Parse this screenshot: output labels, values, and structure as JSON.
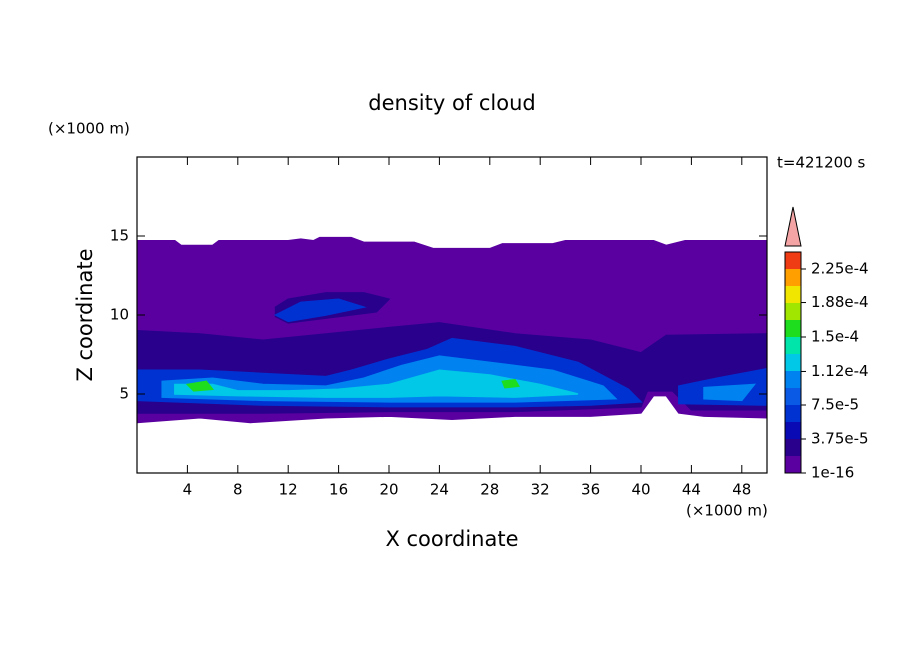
{
  "chart_data": {
    "type": "contour",
    "title": "density of cloud",
    "x_label": "X coordinate",
    "y_label": "Z coordinate",
    "x_unit": "(×1000 m)",
    "y_unit": "(×1000 m)",
    "time_label": "t=421200 s",
    "xlim": [
      0,
      50
    ],
    "ylim": [
      0,
      20
    ],
    "xticks": [
      4,
      8,
      12,
      16,
      20,
      24,
      28,
      32,
      36,
      40,
      44,
      48
    ],
    "yticks": [
      5,
      10,
      15
    ],
    "levels": [
      1e-16,
      1.875e-05,
      3.75e-05,
      5.625e-05,
      7.5e-05,
      9.375e-05,
      0.0001125,
      0.00013125,
      0.00015,
      0.00016875,
      0.0001875,
      0.00020625,
      0.000225
    ],
    "colors": [
      "#5a00a0",
      "#28008c",
      "#0a0ab4",
      "#0032d2",
      "#0a5ae6",
      "#0082f0",
      "#00c8e6",
      "#00e6aa",
      "#1edc1e",
      "#a0e600",
      "#f0e600",
      "#ffa000",
      "#f03c14"
    ],
    "colorbar_ticks": [
      {
        "value": 1e-16,
        "label": "1e-16"
      },
      {
        "value": 3.75e-05,
        "label": "3.75e-5"
      },
      {
        "value": 7.5e-05,
        "label": "7.5e-5"
      },
      {
        "value": 0.000112,
        "label": "1.12e-4"
      },
      {
        "value": 0.00015,
        "label": "1.5e-4"
      },
      {
        "value": 0.000188,
        "label": "1.88e-4"
      },
      {
        "value": 0.000225,
        "label": "2.25e-4"
      }
    ],
    "regions": [
      {
        "level": 1e-16,
        "points": [
          [
            0,
            14.7
          ],
          [
            3,
            14.7
          ],
          [
            3.5,
            14.4
          ],
          [
            6,
            14.4
          ],
          [
            6.5,
            14.7
          ],
          [
            12,
            14.7
          ],
          [
            13,
            14.8
          ],
          [
            14,
            14.7
          ],
          [
            14.5,
            14.9
          ],
          [
            17,
            14.9
          ],
          [
            18,
            14.6
          ],
          [
            22,
            14.6
          ],
          [
            23.5,
            14.2
          ],
          [
            28,
            14.2
          ],
          [
            29,
            14.5
          ],
          [
            33,
            14.5
          ],
          [
            34,
            14.7
          ],
          [
            41,
            14.7
          ],
          [
            42,
            14.4
          ],
          [
            43.5,
            14.7
          ],
          [
            50,
            14.7
          ],
          [
            50,
            3.5
          ],
          [
            45,
            3.6
          ],
          [
            43,
            3.8
          ],
          [
            42,
            4.9
          ],
          [
            41,
            4.9
          ],
          [
            40,
            3.8
          ],
          [
            36,
            3.6
          ],
          [
            30,
            3.6
          ],
          [
            25,
            3.4
          ],
          [
            20,
            3.6
          ],
          [
            15,
            3.5
          ],
          [
            9,
            3.2
          ],
          [
            5,
            3.5
          ],
          [
            0,
            3.2
          ]
        ]
      },
      {
        "level": 1.875e-05,
        "points": [
          [
            0,
            9
          ],
          [
            5,
            8.8
          ],
          [
            10,
            8.4
          ],
          [
            15,
            8.8
          ],
          [
            20,
            9.2
          ],
          [
            24,
            9.5
          ],
          [
            30,
            8.8
          ],
          [
            36,
            8.4
          ],
          [
            40,
            7.6
          ],
          [
            42,
            8.7
          ],
          [
            50,
            8.8
          ],
          [
            50,
            4
          ],
          [
            44,
            4
          ],
          [
            42.5,
            5.2
          ],
          [
            40.5,
            5.2
          ],
          [
            40,
            4.2
          ],
          [
            30,
            3.9
          ],
          [
            20,
            3.9
          ],
          [
            10,
            3.8
          ],
          [
            0,
            3.8
          ]
        ]
      },
      {
        "level": 1.875e-05,
        "points": [
          [
            11,
            10.5
          ],
          [
            12,
            11
          ],
          [
            15,
            11.4
          ],
          [
            18,
            11.4
          ],
          [
            20,
            11
          ],
          [
            19,
            10.2
          ],
          [
            15,
            9.8
          ],
          [
            12,
            9.5
          ],
          [
            11,
            9.9
          ]
        ]
      },
      {
        "level": 5.625e-05,
        "points": [
          [
            0,
            6.5
          ],
          [
            5,
            6.5
          ],
          [
            10,
            6.3
          ],
          [
            15,
            6.1
          ],
          [
            17,
            6.5
          ],
          [
            20,
            7.2
          ],
          [
            23,
            7.8
          ],
          [
            25,
            8.5
          ],
          [
            30,
            8
          ],
          [
            35,
            7
          ],
          [
            39,
            5.3
          ],
          [
            40,
            4.5
          ],
          [
            36,
            4.3
          ],
          [
            30,
            4.2
          ],
          [
            20,
            4.2
          ],
          [
            10,
            4.3
          ],
          [
            0,
            4.6
          ]
        ]
      },
      {
        "level": 5.625e-05,
        "points": [
          [
            43,
            5.5
          ],
          [
            46,
            6
          ],
          [
            50,
            6.6
          ],
          [
            50,
            4.3
          ],
          [
            43,
            4.4
          ]
        ]
      },
      {
        "level": 5.625e-05,
        "points": [
          [
            11,
            10
          ],
          [
            13,
            10.8
          ],
          [
            16,
            11
          ],
          [
            18,
            10.5
          ],
          [
            15,
            10
          ],
          [
            12,
            9.6
          ]
        ]
      },
      {
        "level": 9.375e-05,
        "points": [
          [
            2,
            5.8
          ],
          [
            6,
            6
          ],
          [
            10,
            5.6
          ],
          [
            15,
            5.5
          ],
          [
            18,
            6
          ],
          [
            21,
            6.8
          ],
          [
            24,
            7.4
          ],
          [
            28,
            7
          ],
          [
            33,
            6.5
          ],
          [
            37,
            5.5
          ],
          [
            38,
            4.7
          ],
          [
            30,
            4.5
          ],
          [
            20,
            4.5
          ],
          [
            10,
            4.6
          ],
          [
            2,
            4.8
          ]
        ]
      },
      {
        "level": 9.375e-05,
        "points": [
          [
            45,
            5.4
          ],
          [
            49,
            5.6
          ],
          [
            48,
            4.6
          ],
          [
            45,
            4.7
          ]
        ]
      },
      {
        "level": 0.0001125,
        "points": [
          [
            3,
            5.6
          ],
          [
            6,
            5.6
          ],
          [
            8,
            5.2
          ],
          [
            12,
            5.2
          ],
          [
            16,
            5.3
          ],
          [
            20,
            5.6
          ],
          [
            24,
            6.5
          ],
          [
            28,
            6.2
          ],
          [
            32,
            5.6
          ],
          [
            35,
            5
          ],
          [
            30,
            4.8
          ],
          [
            24,
            4.9
          ],
          [
            20,
            4.8
          ],
          [
            15,
            4.8
          ],
          [
            8,
            4.9
          ],
          [
            3,
            5
          ]
        ]
      },
      {
        "level": 0.00015,
        "points": [
          [
            4,
            5.6
          ],
          [
            5.5,
            5.8
          ],
          [
            6,
            5.3
          ],
          [
            4.5,
            5.2
          ]
        ]
      },
      {
        "level": 0.00015,
        "points": [
          [
            29,
            5.8
          ],
          [
            30,
            5.9
          ],
          [
            30.3,
            5.5
          ],
          [
            29.2,
            5.4
          ]
        ]
      }
    ]
  }
}
